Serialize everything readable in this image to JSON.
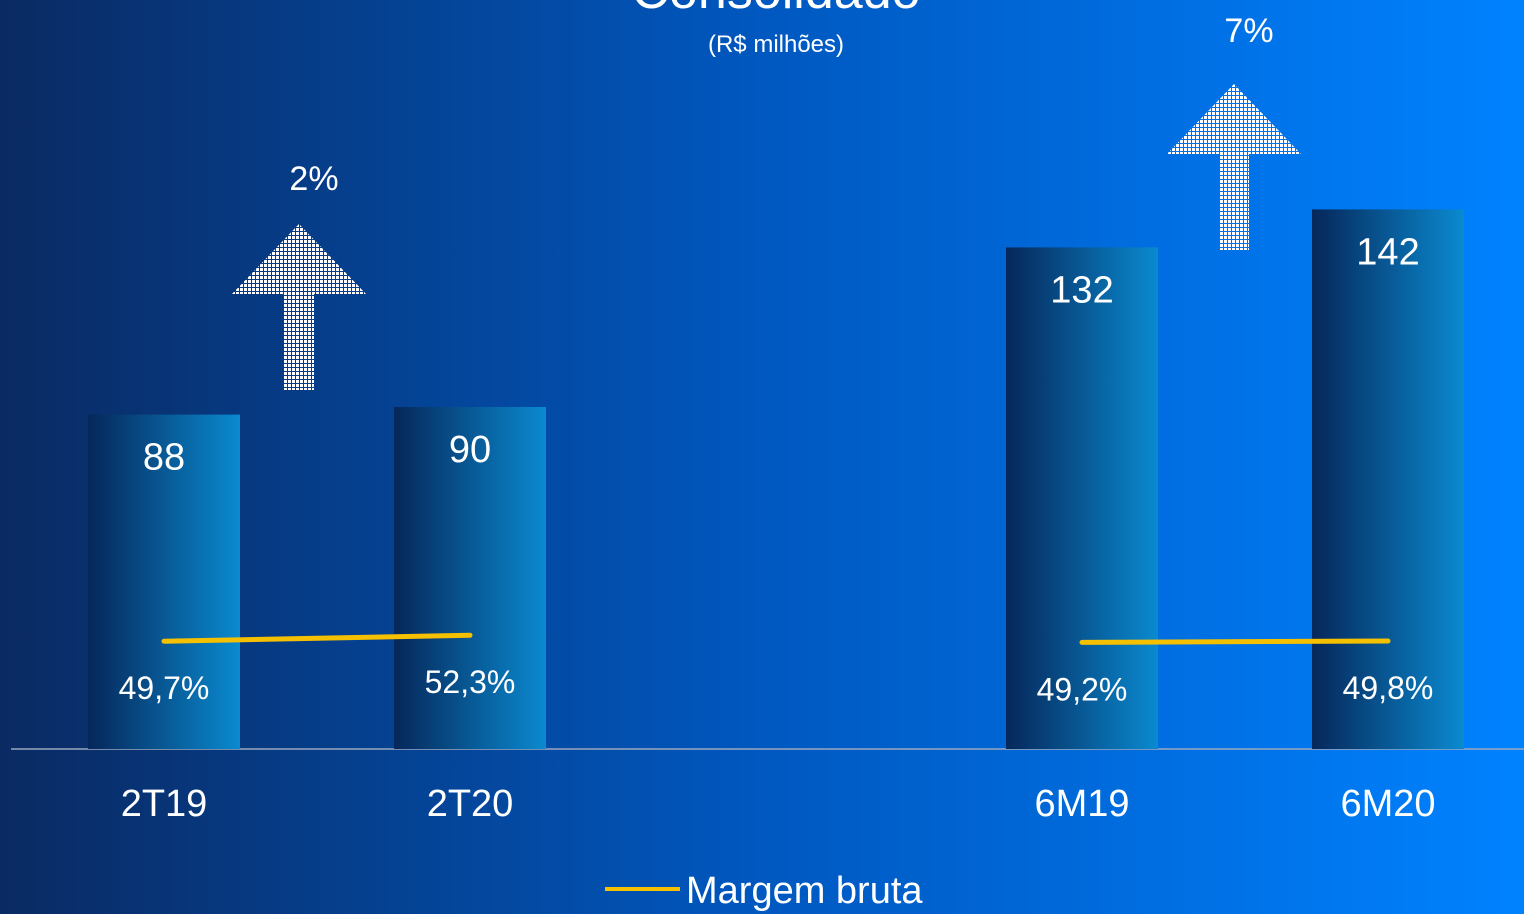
{
  "chart_data": {
    "type": "bar",
    "title": "Consolidado",
    "subtitle": "(R$ milhões)",
    "categories": [
      "2T19",
      "2T20",
      null,
      "6M19",
      "6M20"
    ],
    "series": [
      {
        "type": "bar",
        "gradient": [
          "#06275a",
          "#0a8ad0"
        ],
        "values": [
          88,
          90,
          null,
          132,
          142
        ]
      },
      {
        "type": "line",
        "name": "Margem bruta",
        "color": "#f5c000",
        "axis": "y2",
        "values": [
          49.7,
          52.3,
          null,
          49.2,
          49.8
        ],
        "value_labels": [
          "49,7%",
          "52,3%",
          null,
          "49,2%",
          "49,8%"
        ]
      }
    ],
    "ylim": [
      0,
      150
    ],
    "y2lim": [
      3,
      250
    ],
    "annotations": [
      {
        "text": "2%"
      },
      {
        "text": "7%"
      }
    ]
  }
}
